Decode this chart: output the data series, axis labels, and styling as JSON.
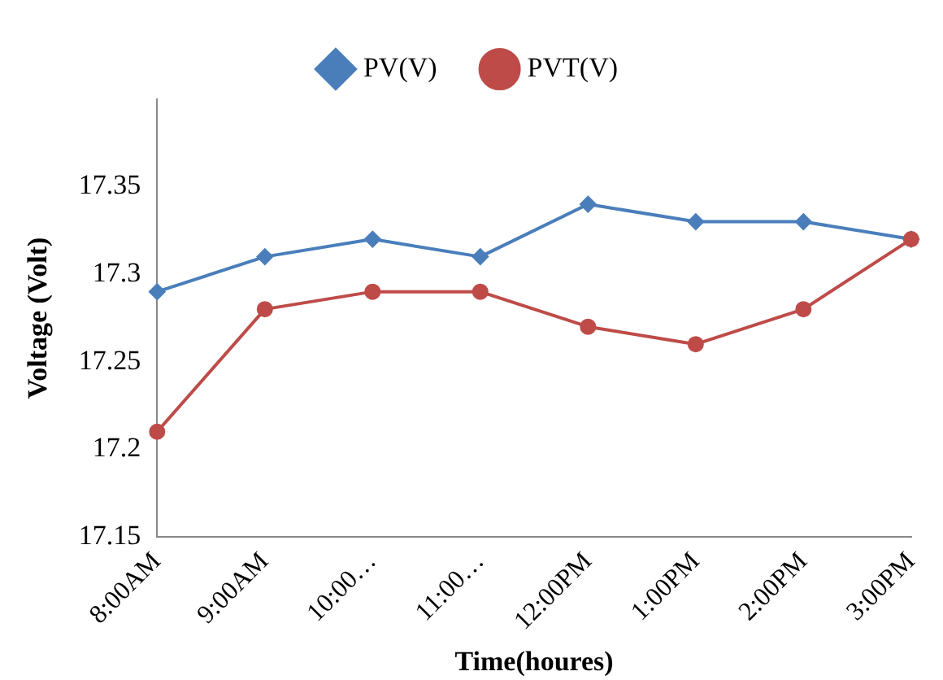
{
  "chart_data": {
    "type": "line",
    "xlabel": "Time(houres)",
    "ylabel": "Voltage (Volt)",
    "categories": [
      "8:00AM",
      "9:00AM",
      "10:00…",
      "11:00…",
      "12:00PM",
      "1:00PM",
      "2:00PM",
      "3:00PM"
    ],
    "series": [
      {
        "name": "PV(V)",
        "color": "#4a7ebb",
        "marker": "diamond",
        "values": [
          17.29,
          17.31,
          17.32,
          17.31,
          17.34,
          17.33,
          17.33,
          17.32
        ]
      },
      {
        "name": "PVT(V)",
        "color": "#be4b48",
        "marker": "circle",
        "values": [
          17.21,
          17.28,
          17.29,
          17.29,
          17.27,
          17.26,
          17.28,
          17.32
        ]
      }
    ],
    "ylim": [
      17.15,
      17.4
    ],
    "yticks": [
      17.15,
      17.2,
      17.25,
      17.3,
      17.35
    ],
    "grid": false,
    "legend": "top",
    "line_style": "solid"
  }
}
